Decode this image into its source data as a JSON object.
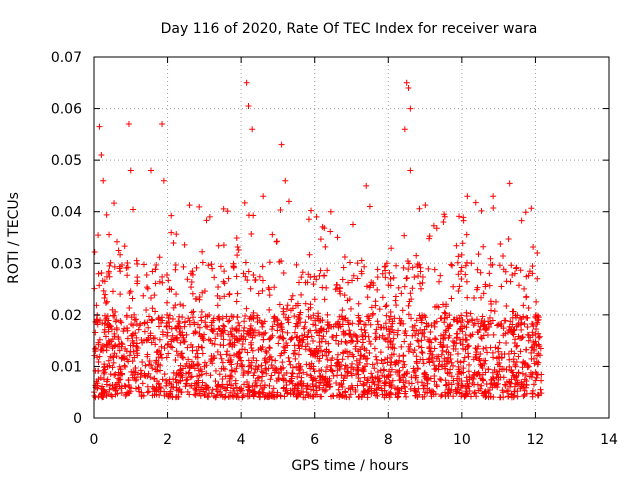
{
  "chart_data": {
    "type": "scatter",
    "title": "Day 116 of 2020, Rate Of TEC Index for receiver wara",
    "xlabel": "GPS time / hours",
    "ylabel": "ROTI / TECUs",
    "xlim": [
      0,
      14
    ],
    "ylim": [
      0,
      0.07
    ],
    "xticks": [
      0,
      2,
      4,
      6,
      8,
      10,
      12,
      14
    ],
    "xtick_labels": [
      "0",
      "2",
      "4",
      "6",
      "8",
      "10",
      "12",
      "14"
    ],
    "yticks": [
      0,
      0.01,
      0.02,
      0.03,
      0.04,
      0.05,
      0.06,
      0.07
    ],
    "ytick_labels": [
      "0",
      "0.01",
      "0.02",
      "0.03",
      "0.04",
      "0.05",
      "0.06",
      "0.07"
    ],
    "grid": true,
    "marker": "+",
    "color": "#ff0000",
    "x_range_of_data": [
      0.0,
      12.2
    ],
    "typical_band": [
      0.004,
      0.02
    ],
    "notable_peaks": [
      {
        "x": 0.15,
        "y": 0.0565
      },
      {
        "x": 0.2,
        "y": 0.051
      },
      {
        "x": 0.25,
        "y": 0.046
      },
      {
        "x": 0.95,
        "y": 0.057
      },
      {
        "x": 1.0,
        "y": 0.048
      },
      {
        "x": 1.55,
        "y": 0.048
      },
      {
        "x": 1.85,
        "y": 0.057
      },
      {
        "x": 1.9,
        "y": 0.046
      },
      {
        "x": 3.15,
        "y": 0.039
      },
      {
        "x": 4.15,
        "y": 0.065
      },
      {
        "x": 4.2,
        "y": 0.0605
      },
      {
        "x": 4.3,
        "y": 0.056
      },
      {
        "x": 4.6,
        "y": 0.043
      },
      {
        "x": 5.1,
        "y": 0.053
      },
      {
        "x": 5.2,
        "y": 0.046
      },
      {
        "x": 5.3,
        "y": 0.042
      },
      {
        "x": 6.05,
        "y": 0.039
      },
      {
        "x": 7.4,
        "y": 0.045
      },
      {
        "x": 7.5,
        "y": 0.041
      },
      {
        "x": 8.5,
        "y": 0.065
      },
      {
        "x": 8.55,
        "y": 0.064
      },
      {
        "x": 8.6,
        "y": 0.06
      },
      {
        "x": 8.45,
        "y": 0.056
      },
      {
        "x": 8.6,
        "y": 0.048
      },
      {
        "x": 9.5,
        "y": 0.038
      },
      {
        "x": 10.15,
        "y": 0.043
      },
      {
        "x": 10.85,
        "y": 0.043
      },
      {
        "x": 11.3,
        "y": 0.0455
      },
      {
        "x": 12.05,
        "y": 0.032
      }
    ]
  }
}
